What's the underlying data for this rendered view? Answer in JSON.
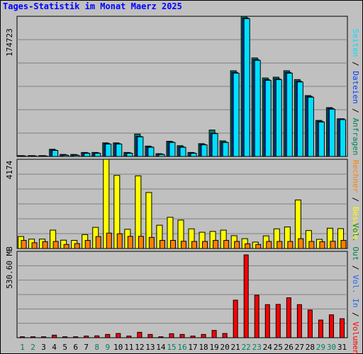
{
  "title": "Tages-Statistik im Monat Maerz 2025",
  "colors": {
    "background": "#c0c0c0",
    "title": "#0000ff",
    "anfragen": "#00805c",
    "dateien": "#0040ff",
    "seiten": "#00e0ff",
    "besuche": "#ffff00",
    "rechner": "#ff8000",
    "vol_out": "#008040",
    "vol_in": "#2060ff",
    "volumen": "#ff0000",
    "weekend_day": "#00805c",
    "weekday": "#000000"
  },
  "chart_data": [
    {
      "type": "bar",
      "ymax_label": "174723",
      "legend": [
        "Anfragen",
        "Dateien",
        "Seiten"
      ],
      "x": [
        "1",
        "2",
        "3",
        "4",
        "5",
        "6",
        "7",
        "8",
        "9",
        "10",
        "11",
        "12",
        "13",
        "14",
        "15",
        "16",
        "17",
        "18",
        "19",
        "20",
        "21",
        "22",
        "23",
        "24",
        "25",
        "26",
        "27",
        "28",
        "29",
        "30",
        "31"
      ],
      "series": [
        {
          "name": "Anfragen",
          "values": [
            1000,
            1000,
            1000,
            9000,
            2500,
            2500,
            5000,
            5000,
            17000,
            17000,
            5000,
            28000,
            13000,
            3500,
            19000,
            13500,
            5000,
            16000,
            33000,
            19500,
            107000,
            175000,
            123000,
            98000,
            99000,
            107000,
            96000,
            76000,
            45000,
            61000,
            47000
          ]
        },
        {
          "name": "Dateien",
          "values": [
            1000,
            1000,
            1000,
            8000,
            2000,
            2000,
            4500,
            4500,
            16000,
            16000,
            4500,
            25000,
            12000,
            3000,
            18000,
            12000,
            4500,
            15000,
            29000,
            18000,
            105000,
            173000,
            121000,
            96000,
            97000,
            105000,
            94000,
            75000,
            44000,
            60000,
            47000
          ]
        },
        {
          "name": "Seiten",
          "values": [
            600,
            600,
            600,
            7500,
            1500,
            1500,
            4000,
            4000,
            15500,
            15500,
            4000,
            24500,
            11500,
            2500,
            17500,
            11500,
            4000,
            14500,
            28500,
            17500,
            104000,
            172000,
            120000,
            95000,
            96000,
            104000,
            93000,
            74000,
            43000,
            59000,
            46000
          ]
        }
      ]
    },
    {
      "type": "bar",
      "ymax_label": "4174",
      "legend": [
        "Besuche",
        "Rechner"
      ],
      "x": [
        "1",
        "2",
        "3",
        "4",
        "5",
        "6",
        "7",
        "8",
        "9",
        "10",
        "11",
        "12",
        "13",
        "14",
        "15",
        "16",
        "17",
        "18",
        "19",
        "20",
        "21",
        "22",
        "23",
        "24",
        "25",
        "26",
        "27",
        "28",
        "29",
        "30",
        "31"
      ],
      "series": [
        {
          "name": "Besuche",
          "values": [
            560,
            440,
            440,
            860,
            390,
            380,
            650,
            990,
            4174,
            3420,
            900,
            3400,
            2620,
            1090,
            1460,
            1330,
            920,
            760,
            800,
            860,
            600,
            460,
            300,
            590,
            920,
            1010,
            2270,
            840,
            430,
            950,
            930
          ]
        },
        {
          "name": "Rechner",
          "values": [
            380,
            270,
            320,
            330,
            190,
            230,
            380,
            560,
            720,
            690,
            570,
            570,
            520,
            380,
            380,
            340,
            330,
            330,
            380,
            380,
            330,
            220,
            190,
            330,
            330,
            330,
            460,
            330,
            320,
            340,
            380
          ]
        }
      ]
    },
    {
      "type": "bar",
      "ymax_label": "530.60 MB",
      "legend": [
        "Volumen",
        "Vol. In",
        "Vol. Out"
      ],
      "x": [
        "1",
        "2",
        "3",
        "4",
        "5",
        "6",
        "7",
        "8",
        "9",
        "10",
        "11",
        "12",
        "13",
        "14",
        "15",
        "16",
        "17",
        "18",
        "19",
        "20",
        "21",
        "22",
        "23",
        "24",
        "25",
        "26",
        "27",
        "28",
        "29",
        "30",
        "31"
      ],
      "series": [
        {
          "name": "Volumen",
          "values": [
            5.8,
            5.8,
            5.8,
            15.9,
            5.8,
            5.8,
            10.2,
            11.6,
            20.3,
            26.1,
            10.2,
            33.3,
            20.3,
            5.8,
            24.6,
            20.3,
            10.2,
            20.3,
            44.9,
            26.1,
            230.8,
            508.8,
            261.2,
            203.3,
            204.7,
            245.3,
            203.3,
            169.9,
            108.6,
            140.8,
            116.8
          ]
        }
      ]
    }
  ]
}
